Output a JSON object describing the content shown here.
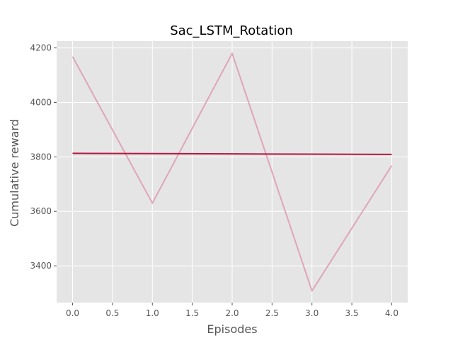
{
  "chart_data": {
    "type": "line",
    "title": "Sac_LSTM_Rotation",
    "xlabel": "Episodes",
    "ylabel": "Cumulative reward",
    "xlim": [
      -0.2,
      4.2
    ],
    "ylim": [
      3265,
      4225
    ],
    "xticks": [
      0.0,
      0.5,
      1.0,
      1.5,
      2.0,
      2.5,
      3.0,
      3.5,
      4.0
    ],
    "xtick_labels": [
      "0.0",
      "0.5",
      "1.0",
      "1.5",
      "2.0",
      "2.5",
      "3.0",
      "3.5",
      "4.0"
    ],
    "yticks": [
      3400,
      3600,
      3800,
      4000,
      4200
    ],
    "ytick_labels": [
      "3400",
      "3600",
      "3800",
      "4000",
      "4200"
    ],
    "grid": true,
    "series": [
      {
        "x": [
          0,
          1,
          2,
          3,
          4
        ],
        "values": [
          4168,
          3630,
          4180,
          3308,
          3768
        ],
        "color": "#dea6b6"
      },
      {
        "x": [
          0,
          1,
          2,
          3,
          4
        ],
        "values": [
          3813,
          3812,
          3811,
          3810,
          3809
        ],
        "color": "#b5173f"
      }
    ],
    "colors": {
      "plot_background": "#e5e5e5",
      "grid": "#ffffff",
      "tick_text": "#555555",
      "label_text": "#555555",
      "title_text": "#000000"
    }
  }
}
